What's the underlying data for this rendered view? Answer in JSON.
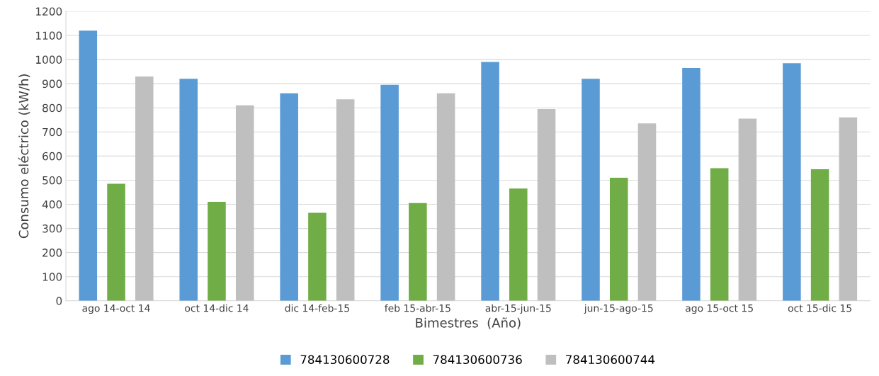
{
  "chart_data": {
    "type": "bar",
    "xlabel": "Bimestres  (Año)",
    "ylabel": "Consumo eléctrico (kW/h)",
    "categories": [
      "ago 14-oct 14",
      "oct 14-dic 14",
      "dic 14-feb-15",
      "feb 15-abr-15",
      "abr-15-jun-15",
      "jun-15-ago-15",
      "ago 15-oct 15",
      "oct 15-dic 15"
    ],
    "series": [
      {
        "name": "784130600728",
        "color": "#5b9bd5",
        "values": [
          1120,
          920,
          860,
          895,
          990,
          920,
          965,
          985
        ]
      },
      {
        "name": "784130600736",
        "color": "#70ad47",
        "values": [
          485,
          410,
          365,
          405,
          465,
          510,
          550,
          545
        ]
      },
      {
        "name": "784130600744",
        "color": "#bfbfbf",
        "values": [
          930,
          810,
          835,
          860,
          795,
          735,
          755,
          760
        ]
      }
    ],
    "ylim": [
      0,
      1200
    ],
    "yticks": [
      0,
      100,
      200,
      300,
      400,
      500,
      600,
      700,
      800,
      900,
      1000,
      1100,
      1200
    ],
    "grid": "y",
    "legend": "bottom"
  }
}
